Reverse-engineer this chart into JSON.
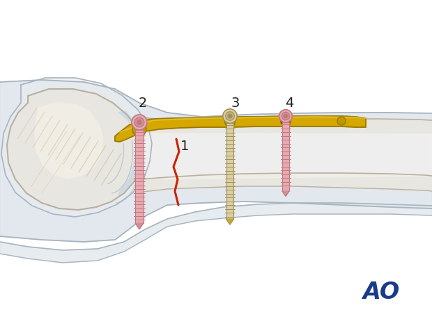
{
  "bg_color": "#ffffff",
  "bone_fill": "#e8e6e0",
  "bone_outline": "#b8b0a0",
  "soft_fill": "#dde4ea",
  "soft_outline": "#a8b4be",
  "soft_fill2": "#e8ecf0",
  "cartilage_fill": "#c8d8e4",
  "plate_fill": "#d4a800",
  "plate_outline": "#9a7800",
  "plate_highlight": "#e8c840",
  "screw_pink_fill": "#e8aab0",
  "screw_pink_dark": "#c07880",
  "screw_pink_mid": "#d09098",
  "screw_cream_fill": "#ddd0a0",
  "screw_cream_dark": "#a09060",
  "screw_cream_mid": "#c8b878",
  "fracture_color": "#cc2200",
  "tendon_color": "#d4c4a0",
  "ao_color": "#1a3a8a",
  "label_color": "#222222",
  "figsize": [
    6.2,
    4.59
  ],
  "dpi": 100
}
